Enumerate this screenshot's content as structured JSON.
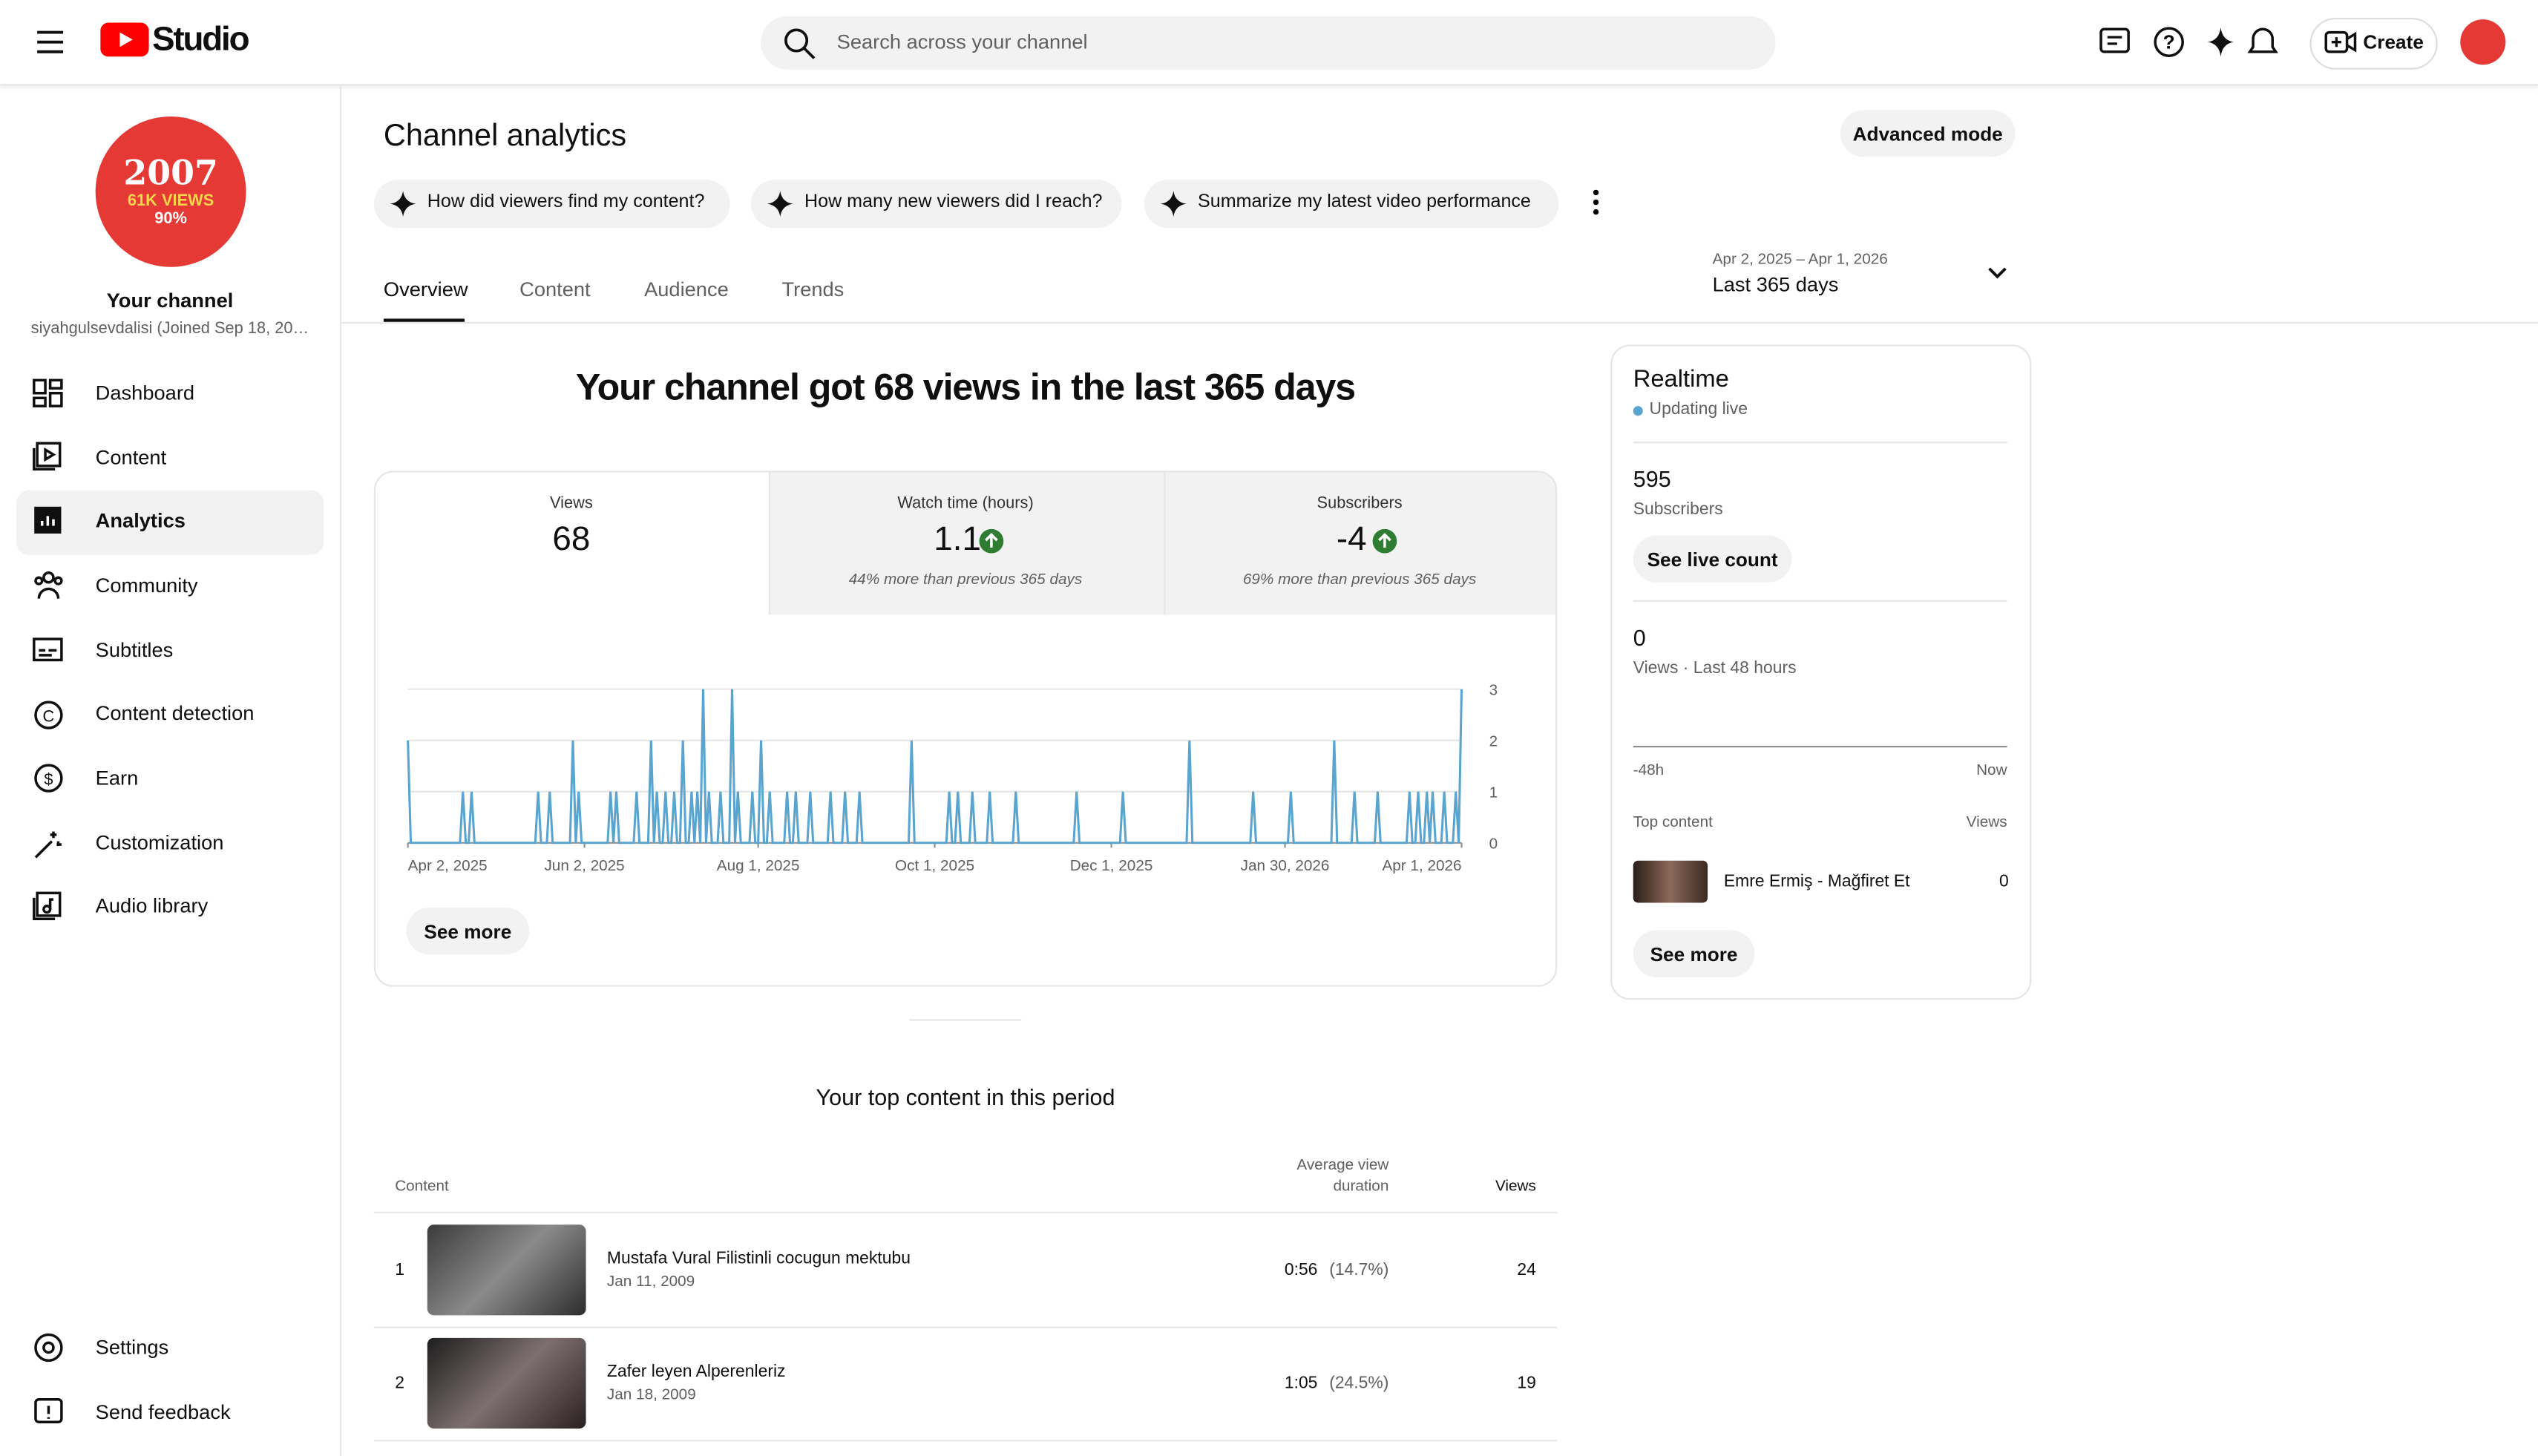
{
  "header": {
    "logo": "Studio",
    "search_placeholder": "Search across your channel",
    "create": "Create"
  },
  "sidebar": {
    "avatar": {
      "line1": "2007",
      "line2": "61K VIEWS",
      "line3": "90%"
    },
    "channel_name": "Your channel",
    "handle": "siyahgulsevdalisi (Joined Sep 18, 20…",
    "nav": [
      "Dashboard",
      "Content",
      "Analytics",
      "Community",
      "Subtitles",
      "Content detection",
      "Earn",
      "Customization",
      "Audio library"
    ],
    "bottom_nav": [
      "Settings",
      "Send feedback"
    ]
  },
  "main": {
    "title": "Channel analytics",
    "advanced_mode": "Advanced mode",
    "prompts": [
      "How did viewers find my content?",
      "How many new viewers did I reach?",
      "Summarize my latest video performance"
    ],
    "tabs": [
      "Overview",
      "Content",
      "Audience",
      "Trends"
    ],
    "date_range": "Apr 2, 2025 – Apr 1, 2026",
    "period": "Last 365 days",
    "headline": "Your channel got 68 views in the last 365 days",
    "metrics": [
      {
        "label": "Views",
        "value": 68
      },
      {
        "label": "Watch time (hours)",
        "value": 1.1,
        "note": "44% more than previous 365 days"
      },
      {
        "label": "Subscribers",
        "value": -4,
        "note": "69% more than previous 365 days"
      }
    ],
    "see_more": "See more",
    "top_content": {
      "title": "Your top content in this period",
      "columns": [
        "Content",
        "Average view duration",
        "Views"
      ],
      "rows": [
        {
          "rank": 1,
          "title": "Mustafa Vural Filistinli cocugun mektubu",
          "date": "Jan 11, 2009",
          "duration": "0:56",
          "percent": "(14.7%)",
          "views": 24
        },
        {
          "rank": 2,
          "title": "Zafer leyen Alperenleriz",
          "date": "Jan 18, 2009",
          "duration": "1:05",
          "percent": "(24.5%)",
          "views": 19
        }
      ]
    }
  },
  "realtime": {
    "title": "Realtime",
    "status": "Updating live",
    "subscribers": 595,
    "subscribers_label": "Subscribers",
    "live_count": "See live count",
    "views": 0,
    "views_label": "Views · Last 48 hours",
    "axis_start": "-48h",
    "axis_end": "Now",
    "top_content_label": "Top content",
    "views_header": "Views",
    "top_item": {
      "title": "Emre Ermiş - Mağfiret Et",
      "views": 0
    },
    "see_more": "See more"
  },
  "chart_data": {
    "type": "line",
    "color": "#5aa5cf",
    "grid": true,
    "xlim": [
      0,
      364
    ],
    "ylim": [
      0,
      3
    ],
    "yticks": [
      0,
      1,
      2,
      3
    ],
    "xticks": [
      {
        "value": 0,
        "label": "Apr 2, 2025"
      },
      {
        "value": 61,
        "label": "Jun 2, 2025"
      },
      {
        "value": 121,
        "label": "Aug 1, 2025"
      },
      {
        "value": 182,
        "label": "Oct 1, 2025"
      },
      {
        "value": 243,
        "label": "Dec 1, 2025"
      },
      {
        "value": 303,
        "label": "Jan 30, 2026"
      },
      {
        "value": 364,
        "label": "Apr 1, 2026"
      }
    ],
    "values": [
      2,
      0,
      0,
      0,
      0,
      0,
      0,
      0,
      0,
      0,
      0,
      0,
      0,
      0,
      0,
      0,
      0,
      0,
      0,
      1,
      0,
      0,
      1,
      0,
      0,
      0,
      0,
      0,
      0,
      0,
      0,
      0,
      0,
      0,
      0,
      0,
      0,
      0,
      0,
      0,
      0,
      0,
      0,
      0,
      0,
      1,
      0,
      0,
      0,
      1,
      0,
      0,
      0,
      0,
      0,
      0,
      0,
      2,
      0,
      1,
      0,
      0,
      0,
      0,
      0,
      0,
      0,
      0,
      0,
      0,
      1,
      0,
      1,
      0,
      0,
      0,
      0,
      0,
      0,
      1,
      0,
      0,
      0,
      0,
      2,
      0,
      1,
      0,
      0,
      1,
      0,
      0,
      1,
      0,
      0,
      2,
      0,
      0,
      1,
      0,
      1,
      0,
      3,
      0,
      1,
      0,
      0,
      0,
      1,
      0,
      0,
      0,
      3,
      0,
      1,
      0,
      0,
      0,
      0,
      1,
      0,
      0,
      2,
      0,
      0,
      1,
      0,
      0,
      0,
      0,
      0,
      1,
      0,
      0,
      1,
      0,
      0,
      0,
      0,
      1,
      0,
      0,
      0,
      0,
      0,
      0,
      1,
      0,
      0,
      0,
      0,
      1,
      0,
      0,
      0,
      0,
      1,
      0,
      0,
      0,
      0,
      0,
      0,
      0,
      0,
      0,
      0,
      0,
      0,
      0,
      0,
      0,
      0,
      0,
      2,
      0,
      0,
      0,
      0,
      0,
      0,
      0,
      0,
      0,
      0,
      0,
      0,
      1,
      0,
      0,
      1,
      0,
      0,
      0,
      0,
      1,
      0,
      0,
      0,
      0,
      0,
      1,
      0,
      0,
      0,
      0,
      0,
      0,
      0,
      0,
      1,
      0,
      0,
      0,
      0,
      0,
      0,
      0,
      0,
      0,
      0,
      0,
      0,
      0,
      0,
      0,
      0,
      0,
      0,
      0,
      0,
      1,
      0,
      0,
      0,
      0,
      0,
      0,
      0,
      0,
      0,
      0,
      0,
      0,
      0,
      0,
      0,
      1,
      0,
      0,
      0,
      0,
      0,
      0,
      0,
      0,
      0,
      0,
      0,
      0,
      0,
      0,
      0,
      0,
      0,
      0,
      0,
      0,
      0,
      0,
      2,
      0,
      0,
      0,
      0,
      0,
      0,
      0,
      0,
      0,
      0,
      0,
      0,
      0,
      0,
      0,
      0,
      0,
      0,
      0,
      0,
      0,
      1,
      0,
      0,
      0,
      0,
      0,
      0,
      0,
      0,
      0,
      0,
      0,
      0,
      1,
      0,
      0,
      0,
      0,
      0,
      0,
      0,
      0,
      0,
      0,
      0,
      0,
      0,
      0,
      2,
      0,
      0,
      0,
      0,
      0,
      0,
      1,
      0,
      0,
      0,
      0,
      0,
      0,
      0,
      1,
      0,
      0,
      0,
      0,
      0,
      0,
      0,
      0,
      0,
      0,
      1,
      0,
      0,
      1,
      0,
      0,
      1,
      0,
      1,
      0,
      0,
      0,
      1,
      0,
      0,
      0,
      1,
      0,
      3
    ]
  }
}
